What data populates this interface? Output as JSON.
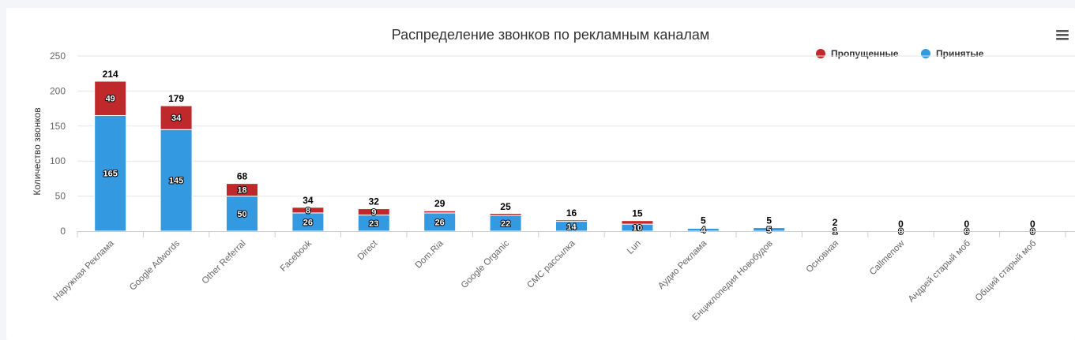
{
  "chart_data": {
    "type": "bar",
    "stacked": true,
    "title": "Распределение звонков по рекламным каналам",
    "ylabel": "Количество звонков",
    "xlabel": "",
    "ylim": [
      0,
      250
    ],
    "yticks": [
      0,
      50,
      100,
      150,
      200,
      250
    ],
    "grid": true,
    "legend_position": "top-right",
    "categories": [
      "Наружная Реклама",
      "Google Adwords",
      "Other Referral",
      "Facebook",
      "Direct",
      "Dom.Ria",
      "Google Organic",
      "СМС рассылка",
      "Lun",
      "Аудио Реклама",
      "Енциклопедия Новобудов",
      "Основная",
      "Callmenow",
      "Андрей старый моб",
      "Общий старый моб"
    ],
    "series": [
      {
        "name": "Пропущенные",
        "color": "#c0292b",
        "values": [
          49,
          34,
          18,
          8,
          9,
          3,
          3,
          2,
          5,
          1,
          0,
          1,
          0,
          0,
          0
        ]
      },
      {
        "name": "Принятые",
        "color": "#3399e0",
        "values": [
          165,
          145,
          50,
          26,
          23,
          26,
          22,
          14,
          10,
          4,
          5,
          1,
          0,
          0,
          0
        ]
      }
    ],
    "totals": [
      214,
      179,
      68,
      34,
      32,
      29,
      25,
      16,
      15,
      5,
      5,
      2,
      0,
      0,
      0
    ],
    "segment_label_series": "Принятые",
    "segment_label_min_missed": 8
  },
  "menu_icon": "hamburger-menu-icon"
}
